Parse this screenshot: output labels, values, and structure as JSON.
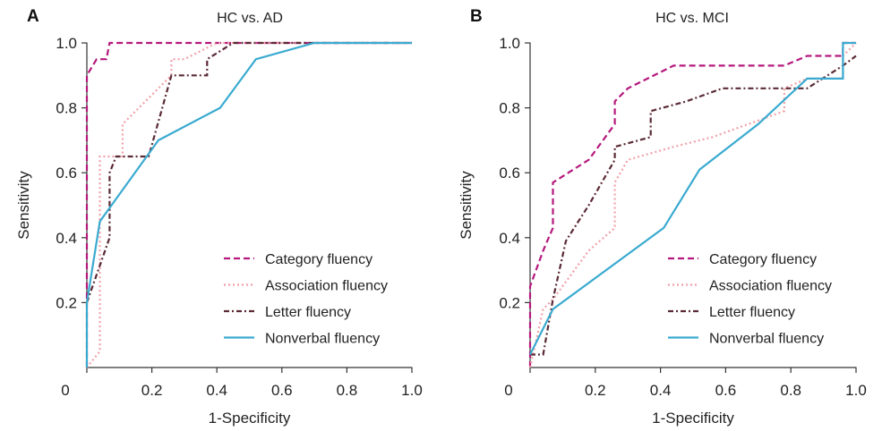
{
  "chart_data": [
    {
      "type": "line",
      "panel_letter": "A",
      "title": "HC vs. AD",
      "xlabel": "1-Specificity",
      "ylabel": "Sensitivity",
      "xlim": [
        0,
        1
      ],
      "ylim": [
        0,
        1
      ],
      "x_ticks": [
        "0",
        "0.2",
        "0.4",
        "0.6",
        "0.8",
        "1.0"
      ],
      "y_ticks": [
        "0.2",
        "0.4",
        "0.6",
        "0.8",
        "1.0"
      ],
      "grid": false,
      "legend_position": "bottom-right",
      "series": [
        {
          "name": "Category fluency",
          "color": "#b5197d",
          "dash": "dashed",
          "points": [
            [
              0,
              0
            ],
            [
              0,
              0.9
            ],
            [
              0.03,
              0.95
            ],
            [
              0.06,
              0.95
            ],
            [
              0.07,
              1.0
            ],
            [
              1.0,
              1.0
            ]
          ]
        },
        {
          "name": "Association fluency",
          "color": "#f0a0a8",
          "dash": "dotted",
          "points": [
            [
              0,
              0
            ],
            [
              0.04,
              0.05
            ],
            [
              0.04,
              0.65
            ],
            [
              0.11,
              0.65
            ],
            [
              0.11,
              0.75
            ],
            [
              0.26,
              0.9
            ],
            [
              0.26,
              0.95
            ],
            [
              0.3,
              0.95
            ],
            [
              0.4,
              1.0
            ],
            [
              1.0,
              1.0
            ]
          ]
        },
        {
          "name": "Letter fluency",
          "color": "#5a2a35",
          "dash": "dashdot",
          "points": [
            [
              0,
              0.2
            ],
            [
              0.07,
              0.4
            ],
            [
              0.07,
              0.6
            ],
            [
              0.09,
              0.65
            ],
            [
              0.19,
              0.65
            ],
            [
              0.26,
              0.9
            ],
            [
              0.37,
              0.9
            ],
            [
              0.37,
              0.95
            ],
            [
              0.45,
              1.0
            ],
            [
              1.0,
              1.0
            ]
          ]
        },
        {
          "name": "Nonverbal fluency",
          "color": "#3aaad0",
          "dash": "solid",
          "points": [
            [
              0,
              0
            ],
            [
              0,
              0.2
            ],
            [
              0.04,
              0.45
            ],
            [
              0.22,
              0.7
            ],
            [
              0.41,
              0.8
            ],
            [
              0.52,
              0.95
            ],
            [
              0.7,
              1.0
            ],
            [
              1.0,
              1.0
            ]
          ]
        }
      ]
    },
    {
      "type": "line",
      "panel_letter": "B",
      "title": "HC vs. MCI",
      "xlabel": "1-Specificity",
      "ylabel": "Sensitivity",
      "xlim": [
        0,
        1
      ],
      "ylim": [
        0,
        1
      ],
      "x_ticks": [
        "0",
        "0.2",
        "0.4",
        "0.6",
        "0.8",
        "1.0"
      ],
      "y_ticks": [
        "0.2",
        "0.4",
        "0.6",
        "0.8",
        "1.0"
      ],
      "grid": false,
      "legend_position": "bottom-right",
      "series": [
        {
          "name": "Category fluency",
          "color": "#b5197d",
          "dash": "dashed",
          "points": [
            [
              0,
              0
            ],
            [
              0,
              0.25
            ],
            [
              0.04,
              0.36
            ],
            [
              0.07,
              0.43
            ],
            [
              0.07,
              0.57
            ],
            [
              0.18,
              0.64
            ],
            [
              0.26,
              0.75
            ],
            [
              0.26,
              0.82
            ],
            [
              0.3,
              0.86
            ],
            [
              0.44,
              0.93
            ],
            [
              0.78,
              0.93
            ],
            [
              0.85,
              0.96
            ],
            [
              0.96,
              0.96
            ],
            [
              0.96,
              1.0
            ],
            [
              1.0,
              1.0
            ]
          ]
        },
        {
          "name": "Association fluency",
          "color": "#f0a0a8",
          "dash": "dotted",
          "points": [
            [
              0,
              0
            ],
            [
              0.04,
              0.18
            ],
            [
              0.07,
              0.21
            ],
            [
              0.18,
              0.36
            ],
            [
              0.26,
              0.43
            ],
            [
              0.26,
              0.57
            ],
            [
              0.3,
              0.64
            ],
            [
              0.44,
              0.68
            ],
            [
              0.56,
              0.71
            ],
            [
              0.78,
              0.79
            ],
            [
              0.78,
              0.86
            ],
            [
              0.85,
              0.89
            ],
            [
              0.96,
              0.89
            ],
            [
              0.96,
              0.96
            ],
            [
              1.0,
              1.0
            ]
          ]
        },
        {
          "name": "Letter fluency",
          "color": "#5a2a35",
          "dash": "dashdot",
          "points": [
            [
              0,
              0.04
            ],
            [
              0.04,
              0.04
            ],
            [
              0.07,
              0.21
            ],
            [
              0.11,
              0.39
            ],
            [
              0.18,
              0.5
            ],
            [
              0.26,
              0.64
            ],
            [
              0.26,
              0.68
            ],
            [
              0.37,
              0.71
            ],
            [
              0.37,
              0.79
            ],
            [
              0.48,
              0.82
            ],
            [
              0.59,
              0.86
            ],
            [
              0.85,
              0.86
            ],
            [
              0.96,
              0.93
            ],
            [
              1.0,
              0.96
            ]
          ]
        },
        {
          "name": "Nonverbal fluency",
          "color": "#3aaad0",
          "dash": "solid",
          "points": [
            [
              0,
              0.04
            ],
            [
              0.07,
              0.18
            ],
            [
              0.41,
              0.43
            ],
            [
              0.52,
              0.61
            ],
            [
              0.7,
              0.75
            ],
            [
              0.85,
              0.89
            ],
            [
              0.96,
              0.89
            ],
            [
              0.96,
              1.0
            ],
            [
              1.0,
              1.0
            ]
          ]
        }
      ]
    }
  ]
}
